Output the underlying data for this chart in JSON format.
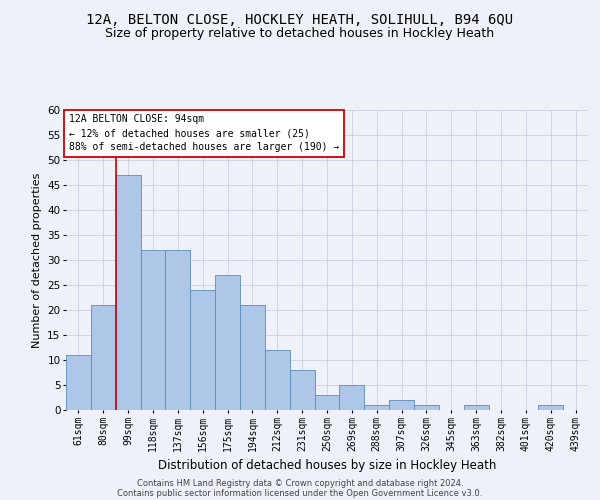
{
  "title": "12A, BELTON CLOSE, HOCKLEY HEATH, SOLIHULL, B94 6QU",
  "subtitle": "Size of property relative to detached houses in Hockley Heath",
  "xlabel": "Distribution of detached houses by size in Hockley Heath",
  "ylabel": "Number of detached properties",
  "categories": [
    "61sqm",
    "80sqm",
    "99sqm",
    "118sqm",
    "137sqm",
    "156sqm",
    "175sqm",
    "194sqm",
    "212sqm",
    "231sqm",
    "250sqm",
    "269sqm",
    "288sqm",
    "307sqm",
    "326sqm",
    "345sqm",
    "363sqm",
    "382sqm",
    "401sqm",
    "420sqm",
    "439sqm"
  ],
  "values": [
    11,
    21,
    47,
    32,
    32,
    24,
    27,
    21,
    12,
    8,
    3,
    5,
    1,
    2,
    1,
    0,
    1,
    0,
    0,
    1,
    0
  ],
  "bar_color": "#aec6e8",
  "bar_edge_color": "#5b8db8",
  "grid_color": "#c8d0dc",
  "vline_color": "#cc0000",
  "vline_x_index": 1.5,
  "annotation_text": "12A BELTON CLOSE: 94sqm\n← 12% of detached houses are smaller (25)\n88% of semi-detached houses are larger (190) →",
  "annotation_box_facecolor": "#ffffff",
  "annotation_box_edgecolor": "#cc0000",
  "footer_line1": "Contains HM Land Registry data © Crown copyright and database right 2024.",
  "footer_line2": "Contains public sector information licensed under the Open Government Licence v3.0.",
  "ylim": [
    0,
    60
  ],
  "background_color": "#eef2f8",
  "title_fontsize": 10,
  "subtitle_fontsize": 9,
  "ylabel_fontsize": 8,
  "xlabel_fontsize": 8.5,
  "tick_fontsize": 7,
  "annotation_fontsize": 7,
  "footer_fontsize": 6
}
